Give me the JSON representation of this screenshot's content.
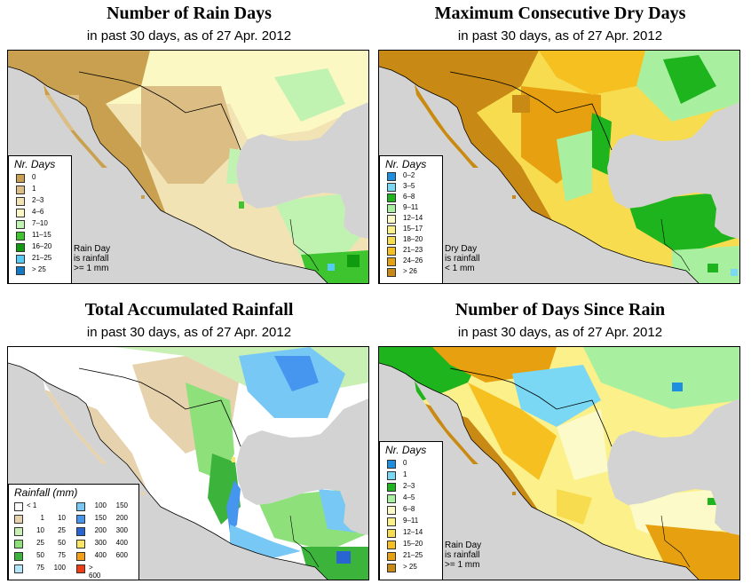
{
  "panels": [
    {
      "title": "Number of Rain Days",
      "subtitle": "in past 30 days, as of  27 Apr. 2012",
      "legend_title": "Nr. Days",
      "legend_items": [
        {
          "label": "0",
          "color": "#c8a04f"
        },
        {
          "label": "1",
          "color": "#dcbe84"
        },
        {
          "label": "2–3",
          "color": "#f2e3b4"
        },
        {
          "label": "4–6",
          "color": "#fbf8c4"
        },
        {
          "label": "7–10",
          "color": "#c0f2b2"
        },
        {
          "label": "11–15",
          "color": "#3ec42e"
        },
        {
          "label": "16–20",
          "color": "#0f9a0f"
        },
        {
          "label": "21–25",
          "color": "#55ccf5"
        },
        {
          "label": "> 25",
          "color": "#1278c8"
        }
      ],
      "note": [
        "Rain Day",
        "is rainfall",
        ">= 1 mm"
      ]
    },
    {
      "title": "Maximum Consecutive Dry Days",
      "subtitle": "in past 30 days, as of  27 Apr. 2012",
      "legend_title": "Nr. Days",
      "legend_items": [
        {
          "label": "0–2",
          "color": "#1e8ee0"
        },
        {
          "label": "3–5",
          "color": "#7ad8f5"
        },
        {
          "label": "6–8",
          "color": "#1eb41e"
        },
        {
          "label": "9–11",
          "color": "#a8f0a0"
        },
        {
          "label": "12–14",
          "color": "#fbfac8"
        },
        {
          "label": "15–17",
          "color": "#fbf08a"
        },
        {
          "label": "18–20",
          "color": "#f8dc50"
        },
        {
          "label": "21–23",
          "color": "#f5c020"
        },
        {
          "label": "24–26",
          "color": "#e6a010"
        },
        {
          "label": "> 26",
          "color": "#c88a14"
        }
      ],
      "note": [
        "Dry Day",
        "is rainfall",
        "< 1 mm"
      ]
    },
    {
      "title": "Total Accumulated Rainfall",
      "subtitle": "in past 30 days, as of  27 Apr. 2012",
      "legend_title": "Rainfall (mm)",
      "legend_items": [
        {
          "from": "",
          "to": "< 1",
          "color": "#ffffff"
        },
        {
          "from": "1",
          "to": "10",
          "color": "#e6d2ac"
        },
        {
          "from": "10",
          "to": "25",
          "color": "#c8f0b4"
        },
        {
          "from": "25",
          "to": "50",
          "color": "#8ee07a"
        },
        {
          "from": "50",
          "to": "75",
          "color": "#3cb43c"
        },
        {
          "from": "75",
          "to": "100",
          "color": "#b4e6fa"
        },
        {
          "from": "100",
          "to": "150",
          "color": "#78c8f5"
        },
        {
          "from": "150",
          "to": "200",
          "color": "#4696f0"
        },
        {
          "from": "200",
          "to": "300",
          "color": "#2864d2"
        },
        {
          "from": "300",
          "to": "400",
          "color": "#fae664"
        },
        {
          "from": "400",
          "to": "600",
          "color": "#f5a014"
        },
        {
          "from": "",
          "to": "> 600",
          "color": "#f03c14"
        }
      ]
    },
    {
      "title": "Number of Days Since Rain",
      "subtitle": "in past 30 days, as of  27 Apr. 2012",
      "legend_title": "Nr. Days",
      "legend_items": [
        {
          "label": "0",
          "color": "#1e8ee0"
        },
        {
          "label": "1",
          "color": "#7ad8f5"
        },
        {
          "label": "2–3",
          "color": "#1eb41e"
        },
        {
          "label": "4–5",
          "color": "#a8f0a0"
        },
        {
          "label": "6–8",
          "color": "#fbfac8"
        },
        {
          "label": "9–11",
          "color": "#fbf08a"
        },
        {
          "label": "12–14",
          "color": "#f8dc50"
        },
        {
          "label": "15–20",
          "color": "#f5c020"
        },
        {
          "label": "21–25",
          "color": "#e6a010"
        },
        {
          "label": "> 25",
          "color": "#c88a14"
        }
      ],
      "note": [
        "Rain Day",
        "is rainfall",
        ">= 1 mm"
      ]
    }
  ]
}
